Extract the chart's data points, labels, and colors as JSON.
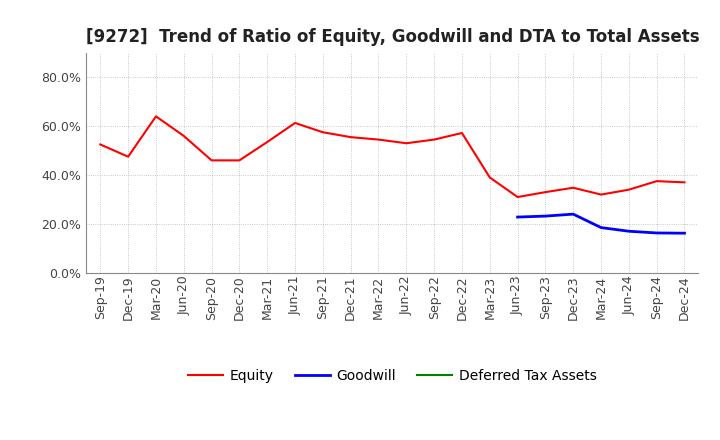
{
  "title": "[9272]  Trend of Ratio of Equity, Goodwill and DTA to Total Assets",
  "x_labels": [
    "Sep-19",
    "Dec-19",
    "Mar-20",
    "Jun-20",
    "Sep-20",
    "Dec-20",
    "Mar-21",
    "Jun-21",
    "Sep-21",
    "Dec-21",
    "Mar-22",
    "Jun-22",
    "Sep-22",
    "Dec-22",
    "Mar-23",
    "Jun-23",
    "Sep-23",
    "Dec-23",
    "Mar-24",
    "Jun-24",
    "Sep-24",
    "Dec-24"
  ],
  "equity": [
    0.525,
    0.475,
    0.64,
    0.56,
    0.46,
    0.46,
    0.535,
    0.613,
    0.575,
    0.555,
    0.545,
    0.53,
    0.545,
    0.572,
    0.39,
    0.31,
    0.33,
    0.348,
    0.32,
    0.34,
    0.375,
    0.37
  ],
  "goodwill": [
    null,
    null,
    null,
    null,
    null,
    null,
    null,
    null,
    null,
    null,
    null,
    null,
    null,
    null,
    null,
    0.228,
    0.232,
    0.24,
    0.185,
    0.17,
    0.163,
    0.162
  ],
  "dta": [],
  "equity_color": "#FF0000",
  "goodwill_color": "#0000FF",
  "dta_color": "#008000",
  "ylim": [
    0.0,
    0.9
  ],
  "yticks": [
    0.0,
    0.2,
    0.4,
    0.6,
    0.8
  ],
  "background_color": "#ffffff",
  "grid_color": "#b0b0b0",
  "title_fontsize": 12,
  "tick_fontsize": 9,
  "legend_fontsize": 10
}
